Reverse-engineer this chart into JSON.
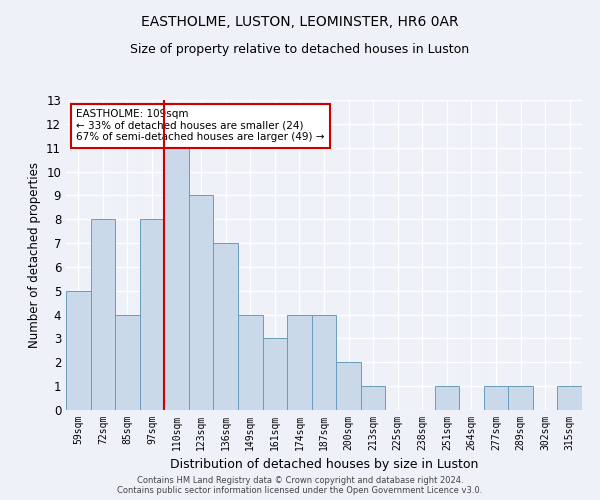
{
  "title1": "EASTHOLME, LUSTON, LEOMINSTER, HR6 0AR",
  "title2": "Size of property relative to detached houses in Luston",
  "xlabel": "Distribution of detached houses by size in Luston",
  "ylabel": "Number of detached properties",
  "footer1": "Contains HM Land Registry data © Crown copyright and database right 2024.",
  "footer2": "Contains public sector information licensed under the Open Government Licence v3.0.",
  "categories": [
    "59sqm",
    "72sqm",
    "85sqm",
    "97sqm",
    "110sqm",
    "123sqm",
    "136sqm",
    "149sqm",
    "161sqm",
    "174sqm",
    "187sqm",
    "200sqm",
    "213sqm",
    "225sqm",
    "238sqm",
    "251sqm",
    "264sqm",
    "277sqm",
    "289sqm",
    "302sqm",
    "315sqm"
  ],
  "values": [
    5,
    8,
    4,
    8,
    11,
    9,
    7,
    4,
    3,
    4,
    4,
    2,
    1,
    0,
    0,
    1,
    0,
    1,
    1,
    0,
    1
  ],
  "bar_color": "#cad9ea",
  "bar_edge_color": "#6a9cbf",
  "marker_index": 4,
  "marker_color": "#cc0000",
  "annotation_title": "EASTHOLME: 109sqm",
  "annotation_line1": "← 33% of detached houses are smaller (24)",
  "annotation_line2": "67% of semi-detached houses are larger (49) →",
  "annotation_box_color": "#ffffff",
  "annotation_box_edge": "#cc0000",
  "ylim": [
    0,
    13
  ],
  "yticks": [
    0,
    1,
    2,
    3,
    4,
    5,
    6,
    7,
    8,
    9,
    10,
    11,
    12,
    13
  ],
  "background_color": "#eef2f8",
  "grid_color": "#ffffff",
  "title1_fontsize": 10,
  "title2_fontsize": 9,
  "xlabel_fontsize": 9,
  "ylabel_fontsize": 8.5
}
